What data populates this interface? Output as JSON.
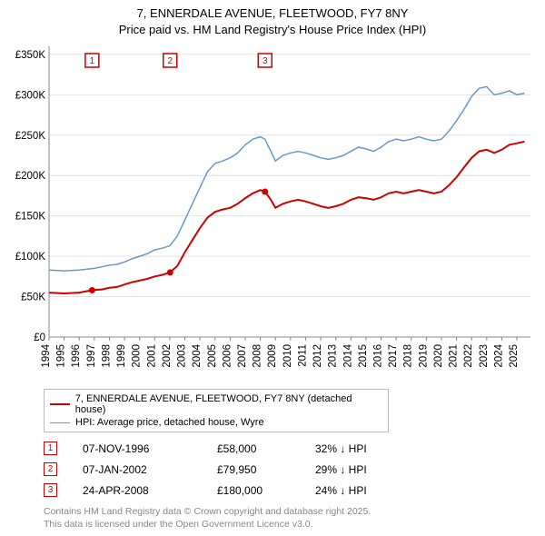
{
  "title_line1": "7, ENNERDALE AVENUE, FLEETWOOD, FY7 8NY",
  "title_line2": "Price paid vs. HM Land Registry's House Price Index (HPI)",
  "chart": {
    "type": "line",
    "background_color": "#ffffff",
    "grid_color": "#e0e0e0",
    "axis_color": "#888888",
    "x": {
      "min": 1994,
      "max": 2025.9,
      "ticks": [
        1994,
        1995,
        1996,
        1997,
        1998,
        1999,
        2000,
        2001,
        2002,
        2003,
        2004,
        2005,
        2006,
        2007,
        2008,
        2009,
        2010,
        2011,
        2012,
        2013,
        2014,
        2015,
        2016,
        2017,
        2018,
        2019,
        2020,
        2021,
        2022,
        2023,
        2024,
        2025
      ]
    },
    "y": {
      "min": 0,
      "max": 360000,
      "ticks": [
        0,
        50000,
        100000,
        150000,
        200000,
        250000,
        300000,
        350000
      ],
      "tick_labels": [
        "£0",
        "£50K",
        "£100K",
        "£150K",
        "£200K",
        "£250K",
        "£300K",
        "£350K"
      ]
    },
    "series": [
      {
        "name": "property",
        "label": "7, ENNERDALE AVENUE, FLEETWOOD, FY7 8NY (detached house)",
        "color": "#cc0000",
        "width": 2,
        "data": [
          [
            1994,
            55000
          ],
          [
            1995,
            54000
          ],
          [
            1996,
            55000
          ],
          [
            1996.85,
            58000
          ],
          [
            1997.5,
            59000
          ],
          [
            1998,
            61000
          ],
          [
            1998.5,
            62000
          ],
          [
            1999,
            65000
          ],
          [
            1999.5,
            68000
          ],
          [
            2000,
            70000
          ],
          [
            2000.5,
            72000
          ],
          [
            2001,
            75000
          ],
          [
            2001.5,
            77000
          ],
          [
            2002.02,
            79950
          ],
          [
            2002.5,
            88000
          ],
          [
            2003,
            105000
          ],
          [
            2003.5,
            120000
          ],
          [
            2004,
            135000
          ],
          [
            2004.5,
            148000
          ],
          [
            2005,
            155000
          ],
          [
            2005.5,
            158000
          ],
          [
            2006,
            160000
          ],
          [
            2006.5,
            165000
          ],
          [
            2007,
            172000
          ],
          [
            2007.5,
            178000
          ],
          [
            2008,
            182000
          ],
          [
            2008.31,
            180000
          ],
          [
            2008.7,
            170000
          ],
          [
            2009,
            160000
          ],
          [
            2009.5,
            165000
          ],
          [
            2010,
            168000
          ],
          [
            2010.5,
            170000
          ],
          [
            2011,
            168000
          ],
          [
            2011.5,
            165000
          ],
          [
            2012,
            162000
          ],
          [
            2012.5,
            160000
          ],
          [
            2013,
            162000
          ],
          [
            2013.5,
            165000
          ],
          [
            2014,
            170000
          ],
          [
            2014.5,
            173000
          ],
          [
            2015,
            172000
          ],
          [
            2015.5,
            170000
          ],
          [
            2016,
            173000
          ],
          [
            2016.5,
            178000
          ],
          [
            2017,
            180000
          ],
          [
            2017.5,
            178000
          ],
          [
            2018,
            180000
          ],
          [
            2018.5,
            182000
          ],
          [
            2019,
            180000
          ],
          [
            2019.5,
            178000
          ],
          [
            2020,
            180000
          ],
          [
            2020.5,
            188000
          ],
          [
            2021,
            198000
          ],
          [
            2021.5,
            210000
          ],
          [
            2022,
            222000
          ],
          [
            2022.5,
            230000
          ],
          [
            2023,
            232000
          ],
          [
            2023.5,
            228000
          ],
          [
            2024,
            232000
          ],
          [
            2024.5,
            238000
          ],
          [
            2025,
            240000
          ],
          [
            2025.5,
            242000
          ]
        ]
      },
      {
        "name": "hpi",
        "label": "HPI: Average price, detached house, Wyre",
        "color": "#6699cc",
        "width": 1.5,
        "data": [
          [
            1994,
            83000
          ],
          [
            1995,
            82000
          ],
          [
            1996,
            83000
          ],
          [
            1997,
            85000
          ],
          [
            1997.5,
            87000
          ],
          [
            1998,
            89000
          ],
          [
            1998.5,
            90000
          ],
          [
            1999,
            93000
          ],
          [
            1999.5,
            97000
          ],
          [
            2000,
            100000
          ],
          [
            2000.5,
            103000
          ],
          [
            2001,
            108000
          ],
          [
            2001.5,
            110000
          ],
          [
            2002,
            113000
          ],
          [
            2002.5,
            125000
          ],
          [
            2003,
            145000
          ],
          [
            2003.5,
            165000
          ],
          [
            2004,
            185000
          ],
          [
            2004.5,
            205000
          ],
          [
            2005,
            215000
          ],
          [
            2005.5,
            218000
          ],
          [
            2006,
            222000
          ],
          [
            2006.5,
            228000
          ],
          [
            2007,
            238000
          ],
          [
            2007.5,
            245000
          ],
          [
            2008,
            248000
          ],
          [
            2008.3,
            245000
          ],
          [
            2008.7,
            230000
          ],
          [
            2009,
            218000
          ],
          [
            2009.5,
            225000
          ],
          [
            2010,
            228000
          ],
          [
            2010.5,
            230000
          ],
          [
            2011,
            228000
          ],
          [
            2011.5,
            225000
          ],
          [
            2012,
            222000
          ],
          [
            2012.5,
            220000
          ],
          [
            2013,
            222000
          ],
          [
            2013.5,
            225000
          ],
          [
            2014,
            230000
          ],
          [
            2014.5,
            235000
          ],
          [
            2015,
            233000
          ],
          [
            2015.5,
            230000
          ],
          [
            2016,
            235000
          ],
          [
            2016.5,
            242000
          ],
          [
            2017,
            245000
          ],
          [
            2017.5,
            243000
          ],
          [
            2018,
            245000
          ],
          [
            2018.5,
            248000
          ],
          [
            2019,
            245000
          ],
          [
            2019.5,
            243000
          ],
          [
            2020,
            245000
          ],
          [
            2020.5,
            255000
          ],
          [
            2021,
            268000
          ],
          [
            2021.5,
            282000
          ],
          [
            2022,
            298000
          ],
          [
            2022.5,
            308000
          ],
          [
            2023,
            310000
          ],
          [
            2023.5,
            300000
          ],
          [
            2024,
            302000
          ],
          [
            2024.5,
            305000
          ],
          [
            2025,
            300000
          ],
          [
            2025.5,
            302000
          ]
        ]
      }
    ],
    "markers": [
      {
        "id": "1",
        "x": 1996.85,
        "y": 58000
      },
      {
        "id": "2",
        "x": 2002.02,
        "y": 79950
      },
      {
        "id": "3",
        "x": 2008.31,
        "y": 180000
      }
    ]
  },
  "legend": {
    "items": [
      {
        "color": "#cc0000",
        "width": 2,
        "label": "7, ENNERDALE AVENUE, FLEETWOOD, FY7 8NY (detached house)"
      },
      {
        "color": "#6699cc",
        "width": 1.5,
        "label": "HPI: Average price, detached house, Wyre"
      }
    ]
  },
  "sales": [
    {
      "id": "1",
      "date": "07-NOV-1996",
      "price": "£58,000",
      "diff": "32% ↓ HPI"
    },
    {
      "id": "2",
      "date": "07-JAN-2002",
      "price": "£79,950",
      "diff": "29% ↓ HPI"
    },
    {
      "id": "3",
      "date": "24-APR-2008",
      "price": "£180,000",
      "diff": "24% ↓ HPI"
    }
  ],
  "credit_line1": "Contains HM Land Registry data © Crown copyright and database right 2025.",
  "credit_line2": "This data is licensed under the Open Government Licence v3.0."
}
